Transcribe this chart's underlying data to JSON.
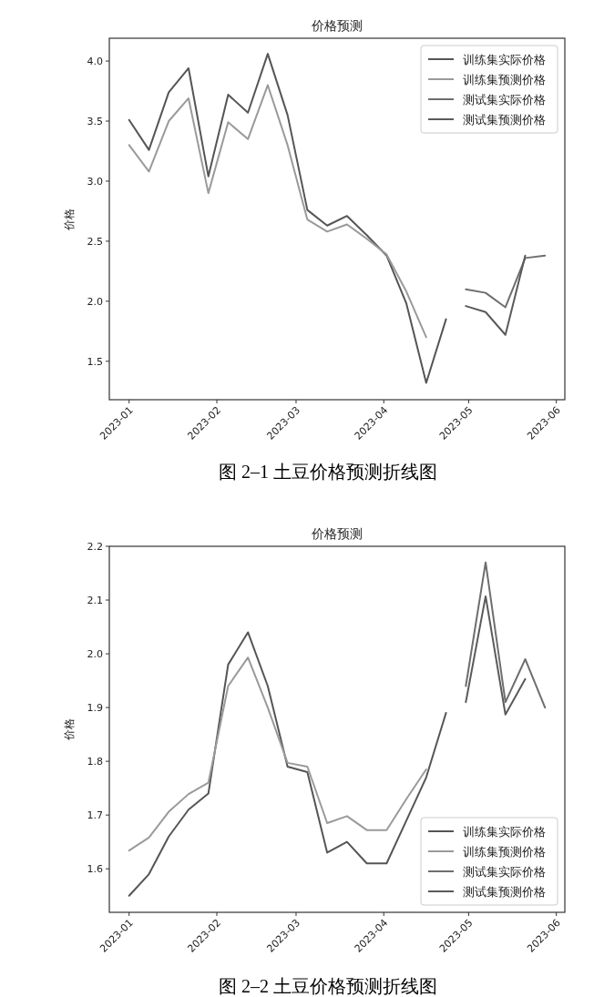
{
  "chart_data": [
    {
      "type": "line",
      "title": "价格预测",
      "ylabel": "价格",
      "annotations": [
        "图 2–1  土豆价格预测折线图"
      ],
      "legend": "top right",
      "xlim": [
        "2022-12-25",
        "2023-06-04"
      ],
      "ylim": [
        1.18,
        4.19
      ],
      "xticks": [
        {
          "value": "2023-01-01",
          "label": "2023-01"
        },
        {
          "value": "2023-02-01",
          "label": "2023-02"
        },
        {
          "value": "2023-03-01",
          "label": "2023-03"
        },
        {
          "value": "2023-04-01",
          "label": "2023-04"
        },
        {
          "value": "2023-05-01",
          "label": "2023-05"
        },
        {
          "value": "2023-06-01",
          "label": "2023-06"
        }
      ],
      "yticks": [
        1.5,
        {
          "value": 2,
          "label": "2.0"
        },
        2.5,
        {
          "value": 3,
          "label": "3.0"
        },
        3.5,
        {
          "value": 4,
          "label": "4.0"
        }
      ],
      "series": [
        {
          "name": "训练集实际价格",
          "color": "#555555",
          "x": [
            "2023-01-01",
            "2023-01-08",
            "2023-01-15",
            "2023-01-22",
            "2023-01-29",
            "2023-02-05",
            "2023-02-12",
            "2023-02-19",
            "2023-02-26",
            "2023-03-05",
            "2023-03-12",
            "2023-03-19",
            "2023-03-26",
            "2023-04-02",
            "2023-04-09",
            "2023-04-16",
            "2023-04-23"
          ],
          "values": [
            3.51,
            3.26,
            3.74,
            3.94,
            3.04,
            3.72,
            3.57,
            4.06,
            3.55,
            2.76,
            2.63,
            2.71,
            2.55,
            2.38,
            1.98,
            1.32,
            1.85
          ]
        },
        {
          "name": "训练集预测价格",
          "color": "#9a9a9a",
          "x": [
            "2023-01-01",
            "2023-01-08",
            "2023-01-15",
            "2023-01-22",
            "2023-01-29",
            "2023-02-05",
            "2023-02-12",
            "2023-02-19",
            "2023-02-26",
            "2023-03-05",
            "2023-03-12",
            "2023-03-19",
            "2023-03-26",
            "2023-04-02",
            "2023-04-09",
            "2023-04-16"
          ],
          "values": [
            3.3,
            3.08,
            3.5,
            3.69,
            2.9,
            3.49,
            3.35,
            3.8,
            3.3,
            2.68,
            2.58,
            2.64,
            2.52,
            2.39,
            2.08,
            1.7
          ]
        },
        {
          "name": "测试集实际价格",
          "color": "#6e6e6e",
          "x": [
            "2023-04-30",
            "2023-05-07",
            "2023-05-14",
            "2023-05-21",
            "2023-05-28"
          ],
          "values": [
            2.1,
            2.07,
            1.95,
            2.36,
            2.38
          ]
        },
        {
          "name": "测试集预测价格",
          "color": "#5a5a5a",
          "x": [
            "2023-04-30",
            "2023-05-07",
            "2023-05-14",
            "2023-05-21"
          ],
          "values": [
            1.96,
            1.91,
            1.72,
            2.38
          ]
        }
      ]
    },
    {
      "type": "line",
      "title": "价格预测",
      "ylabel": "价格",
      "annotations": [
        "图 2–2  土豆价格预测折线图"
      ],
      "legend": "bottom right",
      "xlim": [
        "2022-12-25",
        "2023-06-04"
      ],
      "ylim": [
        1.519,
        2.2
      ],
      "xticks": [
        {
          "value": "2023-01-01",
          "label": "2023-01"
        },
        {
          "value": "2023-02-01",
          "label": "2023-02"
        },
        {
          "value": "2023-03-01",
          "label": "2023-03"
        },
        {
          "value": "2023-04-01",
          "label": "2023-04"
        },
        {
          "value": "2023-05-01",
          "label": "2023-05"
        },
        {
          "value": "2023-06-01",
          "label": "2023-06"
        }
      ],
      "yticks": [
        1.6,
        1.7,
        1.8,
        1.9,
        {
          "value": 2,
          "label": "2.0"
        },
        2.1,
        2.2
      ],
      "series": [
        {
          "name": "训练集实际价格",
          "color": "#555555",
          "x": [
            "2023-01-01",
            "2023-01-08",
            "2023-01-15",
            "2023-01-22",
            "2023-01-29",
            "2023-02-05",
            "2023-02-12",
            "2023-02-19",
            "2023-02-26",
            "2023-03-05",
            "2023-03-12",
            "2023-03-19",
            "2023-03-26",
            "2023-04-02",
            "2023-04-09",
            "2023-04-16",
            "2023-04-23"
          ],
          "values": [
            1.55,
            1.59,
            1.66,
            1.71,
            1.74,
            1.98,
            2.04,
            1.94,
            1.79,
            1.78,
            1.63,
            1.65,
            1.61,
            1.61,
            1.69,
            1.77,
            1.89
          ]
        },
        {
          "name": "训练集预测价格",
          "color": "#9a9a9a",
          "x": [
            "2023-01-01",
            "2023-01-08",
            "2023-01-15",
            "2023-01-22",
            "2023-01-29",
            "2023-02-05",
            "2023-02-12",
            "2023-02-19",
            "2023-02-26",
            "2023-03-05",
            "2023-03-12",
            "2023-03-19",
            "2023-03-26",
            "2023-04-02",
            "2023-04-09",
            "2023-04-16"
          ],
          "values": [
            1.634,
            1.658,
            1.706,
            1.739,
            1.76,
            1.94,
            1.993,
            1.9,
            1.797,
            1.79,
            1.685,
            1.698,
            1.672,
            1.672,
            1.73,
            1.785
          ]
        },
        {
          "name": "测试集实际价格",
          "color": "#6e6e6e",
          "x": [
            "2023-04-30",
            "2023-05-07",
            "2023-05-14",
            "2023-05-21",
            "2023-05-28"
          ],
          "values": [
            1.94,
            2.17,
            1.91,
            1.99,
            1.9
          ]
        },
        {
          "name": "测试集预测价格",
          "color": "#5a5a5a",
          "x": [
            "2023-04-30",
            "2023-05-07",
            "2023-05-14",
            "2023-05-21"
          ],
          "values": [
            1.91,
            2.107,
            1.887,
            1.953
          ]
        }
      ]
    }
  ]
}
